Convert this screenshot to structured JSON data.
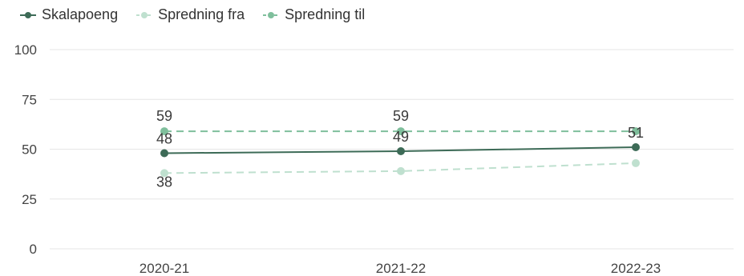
{
  "chart_data": {
    "type": "line",
    "categories": [
      "2020-21",
      "2021-22",
      "2022-23"
    ],
    "ylim": [
      0,
      100
    ],
    "yticks": [
      0,
      25,
      50,
      75,
      100
    ],
    "grid": true,
    "legend_position": "top-left",
    "series": [
      {
        "name": "Skalapoeng",
        "values": [
          48,
          49,
          51
        ],
        "color": "#3d6b57",
        "dashed": false,
        "labels": [
          "48",
          "49",
          "51"
        ]
      },
      {
        "name": "Spredning fra",
        "values": [
          38,
          39,
          43
        ],
        "color": "#bfe0cf",
        "dashed": true,
        "labels": [
          "38",
          "",
          ""
        ]
      },
      {
        "name": "Spredning til",
        "values": [
          59,
          59,
          59
        ],
        "color": "#7fbf9c",
        "dashed": true,
        "labels": [
          "59",
          "59",
          ""
        ]
      }
    ]
  }
}
